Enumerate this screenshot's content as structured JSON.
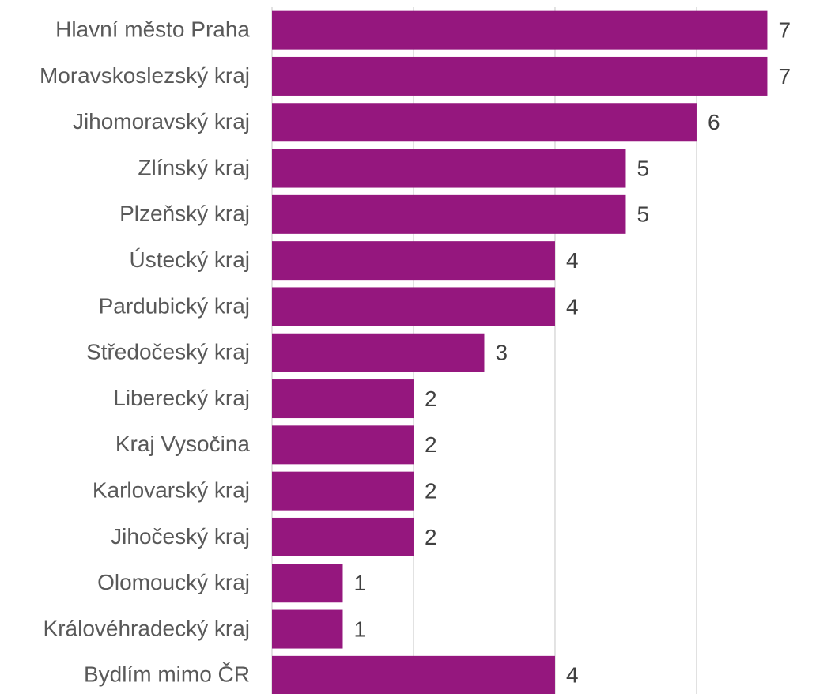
{
  "chart_data": {
    "type": "barh",
    "categories": [
      "Hlavní město Praha",
      "Moravskoslezský kraj",
      "Jihomoravský kraj",
      "Zlínský kraj",
      "Plzeňský kraj",
      "Ústecký kraj",
      "Pardubický kraj",
      "Středočeský kraj",
      "Liberecký kraj",
      "Kraj Vysočina",
      "Karlovarský kraj",
      "Jihočeský kraj",
      "Olomoucký kraj",
      "Královéhradecký kraj",
      "Bydlím mimo ČR"
    ],
    "values": [
      7,
      7,
      6,
      5,
      5,
      4,
      4,
      3,
      2,
      2,
      2,
      2,
      1,
      1,
      4
    ],
    "color": "#95177e",
    "xlim": [
      0,
      7.9
    ],
    "xticks": [
      0,
      2,
      4,
      6
    ],
    "grid": true
  }
}
